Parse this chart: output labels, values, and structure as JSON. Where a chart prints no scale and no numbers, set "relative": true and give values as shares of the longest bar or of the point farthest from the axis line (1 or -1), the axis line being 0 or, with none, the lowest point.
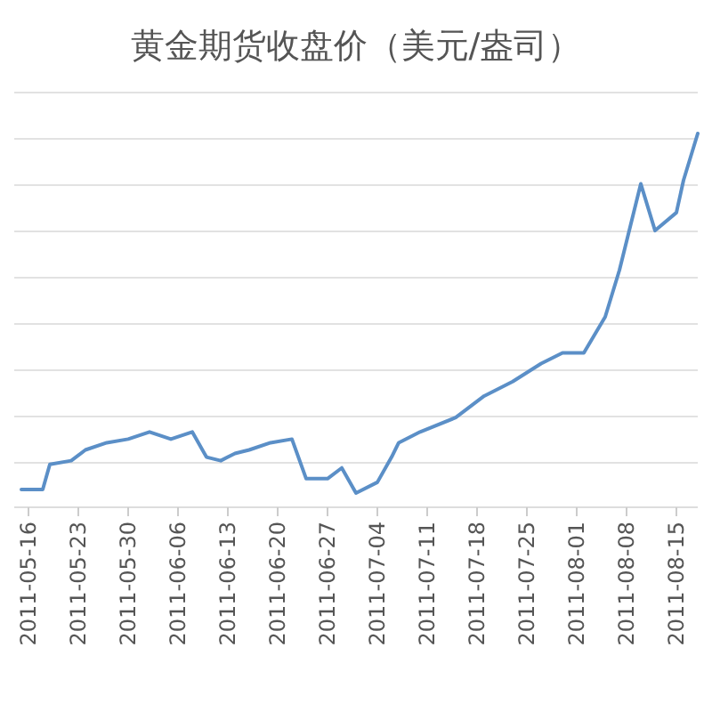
{
  "chart_data": {
    "type": "line",
    "title": "黄金期货收盘价（美元/盎司）",
    "relative": true,
    "grid": true,
    "marker": "none",
    "line_style": "solid",
    "xlim": [
      "2011-05-14",
      "2011-08-18"
    ],
    "xticks": [
      "2011-05-16",
      "2011-05-23",
      "2011-05-30",
      "2011-06-06",
      "2011-06-13",
      "2011-06-20",
      "2011-06-27",
      "2011-07-04",
      "2011-07-11",
      "2011-07-18",
      "2011-07-25",
      "2011-08-01",
      "2011-08-08",
      "2011-08-15"
    ],
    "x": [
      "2011-05-15",
      "2011-05-18",
      "2011-05-19",
      "2011-05-22",
      "2011-05-24",
      "2011-05-27",
      "2011-05-30",
      "2011-06-02",
      "2011-06-05",
      "2011-06-08",
      "2011-06-10",
      "2011-06-12",
      "2011-06-14",
      "2011-06-16",
      "2011-06-19",
      "2011-06-22",
      "2011-06-24",
      "2011-06-27",
      "2011-06-29",
      "2011-07-01",
      "2011-07-04",
      "2011-07-06",
      "2011-07-07",
      "2011-07-10",
      "2011-07-15",
      "2011-07-19",
      "2011-07-23",
      "2011-07-27",
      "2011-07-30",
      "2011-08-02",
      "2011-08-05",
      "2011-08-07",
      "2011-08-10",
      "2011-08-12",
      "2011-08-15",
      "2011-08-16",
      "2011-08-18"
    ],
    "series": [
      {
        "color": "#5b8fc7",
        "values": [
          0.01,
          0.01,
          0.08,
          0.09,
          0.12,
          0.14,
          0.15,
          0.17,
          0.15,
          0.17,
          0.1,
          0.09,
          0.11,
          0.12,
          0.14,
          0.15,
          0.04,
          0.04,
          0.07,
          0,
          0.03,
          0.1,
          0.14,
          0.17,
          0.21,
          0.27,
          0.31,
          0.36,
          0.39,
          0.39,
          0.49,
          0.62,
          0.86,
          0.73,
          0.78,
          0.87,
          1
        ]
      }
    ]
  }
}
